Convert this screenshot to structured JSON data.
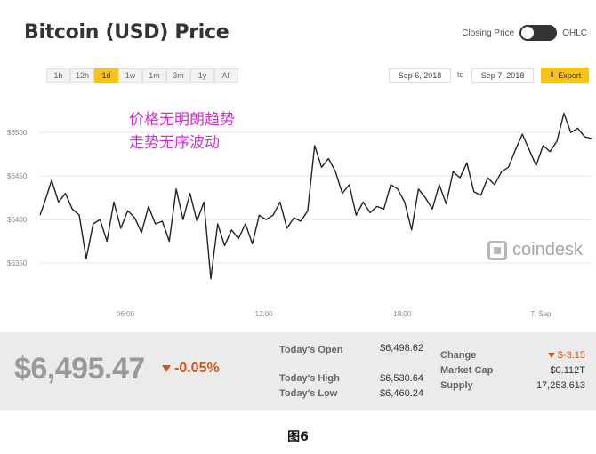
{
  "header": {
    "title": "Bitcoin (USD) Price",
    "toggle_left_label": "Closing Price",
    "toggle_right_label": "OHLC"
  },
  "range_buttons": [
    "1h",
    "12h",
    "1d",
    "1w",
    "1m",
    "3m",
    "1y",
    "All"
  ],
  "active_range": "1d",
  "date_range": {
    "from": "Sep 6, 2018",
    "to_label": "to",
    "to": "Sep 7, 2018"
  },
  "export_label": "Export",
  "annotation": {
    "line1": "价格无明朗趋势",
    "line2": "走势无序波动"
  },
  "brand": "coindesk",
  "stats": {
    "price": "$6,495.47",
    "change_pct": "-0.05%",
    "todays_open_label": "Today's Open",
    "todays_open": "$6,498.62",
    "todays_high_label": "Today's High",
    "todays_high": "$6,530.64",
    "todays_low_label": "Today's Low",
    "todays_low": "$6,460.24",
    "change_label": "Change",
    "change_value": "$-3.15",
    "market_cap_label": "Market Cap",
    "market_cap": "$0.112T",
    "supply_label": "Supply",
    "supply": "17,253,613"
  },
  "caption": "图6",
  "colors": {
    "accent": "#f7c21b",
    "negative": "#d0571e",
    "annotation": "#d62fd6",
    "line": "#222222"
  },
  "chart_data": {
    "type": "line",
    "ylim": [
      6300,
      6540
    ],
    "yticks": [
      6350,
      6400,
      6450,
      6500
    ],
    "ytick_labels": [
      "$6350",
      "$6400",
      "$6450",
      "$6500"
    ],
    "xlim": [
      2.3,
      26.2
    ],
    "xticks": [
      6,
      12,
      18,
      24
    ],
    "xtick_labels": [
      "06:00",
      "12:00",
      "18:00",
      "7. Sep"
    ],
    "grid": true,
    "series": [
      {
        "x": [
          2.3,
          2.5,
          2.8,
          3.1,
          3.4,
          3.7,
          4.0,
          4.3,
          4.6,
          4.9,
          5.2,
          5.5,
          5.8,
          6.1,
          6.4,
          6.7,
          7.0,
          7.3,
          7.6,
          7.9,
          8.2,
          8.5,
          8.8,
          9.1,
          9.4,
          9.7,
          10.0,
          10.3,
          10.6,
          10.9,
          11.2,
          11.5,
          11.8,
          12.1,
          12.4,
          12.7,
          13.0,
          13.3,
          13.6,
          13.9,
          14.2,
          14.5,
          14.8,
          15.1,
          15.4,
          15.7,
          16.0,
          16.3,
          16.6,
          16.9,
          17.2,
          17.5,
          17.8,
          18.1,
          18.4,
          18.7,
          19.0,
          19.3,
          19.6,
          19.9,
          20.2,
          20.5,
          20.8,
          21.1,
          21.4,
          21.7,
          22.0,
          22.3,
          22.6,
          22.9,
          23.2,
          23.5,
          23.8,
          24.1,
          24.4,
          24.7,
          25.0,
          25.3,
          25.6,
          25.9,
          26.2
        ],
        "y": [
          6405,
          6420,
          6445,
          6420,
          6430,
          6412,
          6405,
          6355,
          6395,
          6400,
          6375,
          6420,
          6390,
          6410,
          6402,
          6385,
          6415,
          6395,
          6398,
          6375,
          6435,
          6400,
          6430,
          6398,
          6420,
          6332,
          6395,
          6370,
          6388,
          6378,
          6395,
          6372,
          6405,
          6400,
          6405,
          6420,
          6390,
          6402,
          6398,
          6410,
          6485,
          6460,
          6470,
          6455,
          6430,
          6440,
          6405,
          6420,
          6408,
          6415,
          6412,
          6440,
          6435,
          6420,
          6388,
          6435,
          6425,
          6412,
          6440,
          6418,
          6455,
          6448,
          6465,
          6432,
          6428,
          6448,
          6440,
          6455,
          6460,
          6480,
          6498,
          6480,
          6462,
          6485,
          6478,
          6490,
          6522,
          6500,
          6505,
          6495,
          6493
        ]
      }
    ]
  }
}
